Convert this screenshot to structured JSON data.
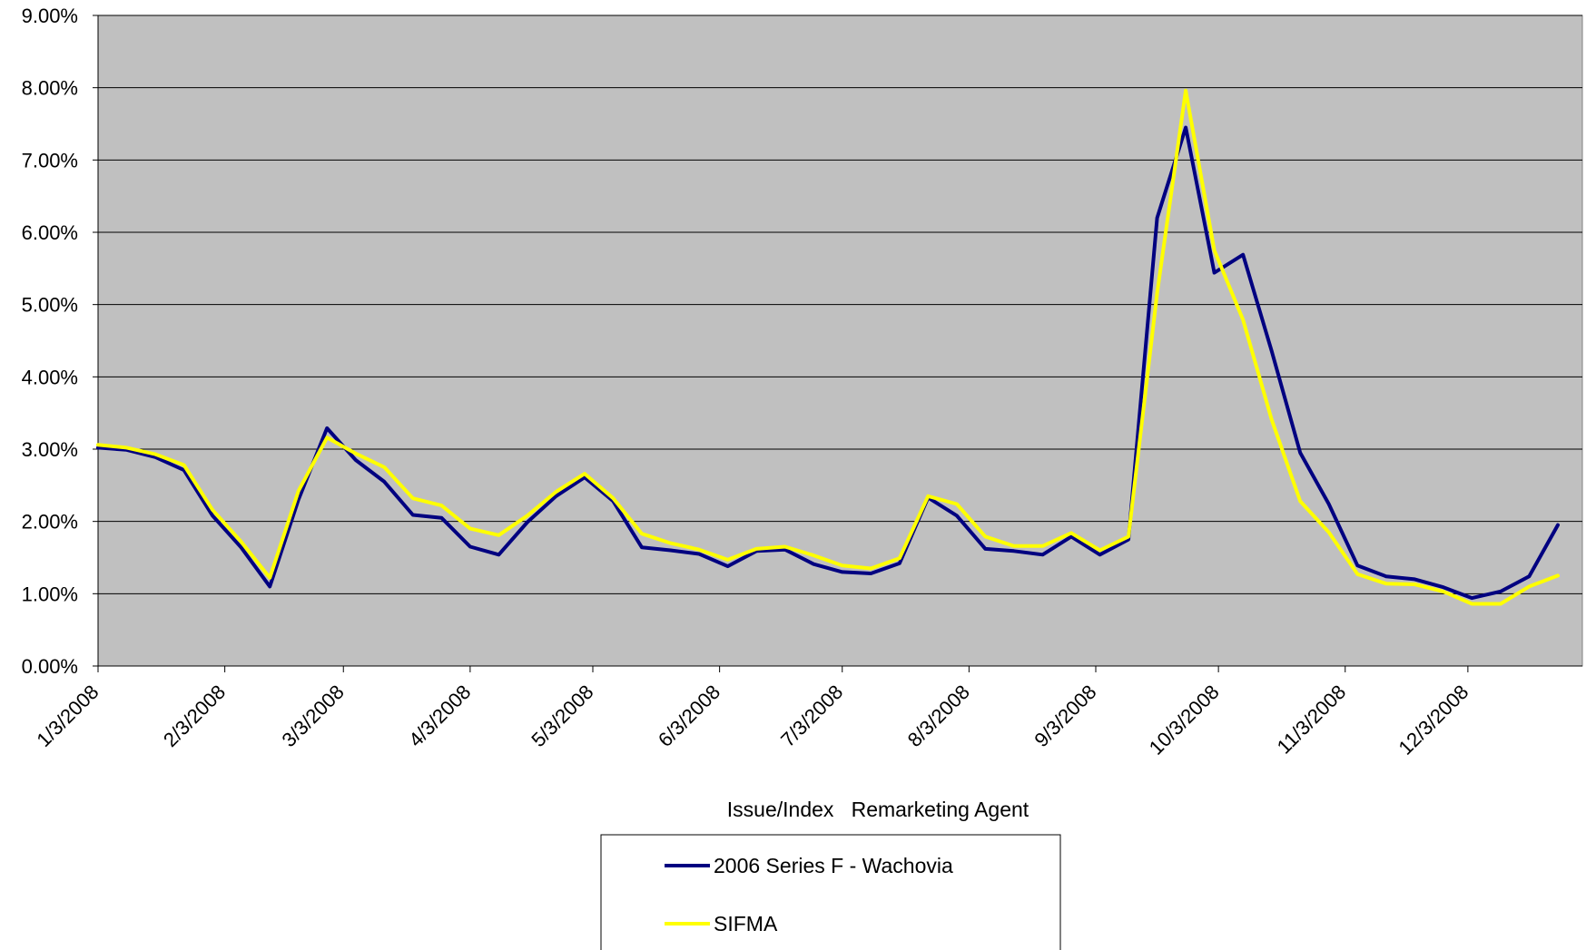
{
  "chart_data": {
    "type": "line",
    "title": "",
    "xlabel": "Issue/Index   Remarketing Agent",
    "ylabel": "",
    "ylim": [
      0,
      9
    ],
    "y_ticks": [
      "0.00%",
      "1.00%",
      "2.00%",
      "3.00%",
      "4.00%",
      "5.00%",
      "6.00%",
      "7.00%",
      "8.00%",
      "9.00%"
    ],
    "x_range": [
      "2008-01-03",
      "2008-12-31"
    ],
    "x_ticks": [
      {
        "date": "2008-01-03",
        "label": "1/3/2008"
      },
      {
        "date": "2008-02-03",
        "label": "2/3/2008"
      },
      {
        "date": "2008-03-03",
        "label": "3/3/2008"
      },
      {
        "date": "2008-04-03",
        "label": "4/3/2008"
      },
      {
        "date": "2008-05-03",
        "label": "5/3/2008"
      },
      {
        "date": "2008-06-03",
        "label": "6/3/2008"
      },
      {
        "date": "2008-07-03",
        "label": "7/3/2008"
      },
      {
        "date": "2008-08-03",
        "label": "8/3/2008"
      },
      {
        "date": "2008-09-03",
        "label": "9/3/2008"
      },
      {
        "date": "2008-10-03",
        "label": "10/3/2008"
      },
      {
        "date": "2008-11-03",
        "label": "11/3/2008"
      },
      {
        "date": "2008-12-03",
        "label": "12/3/2008"
      }
    ],
    "grid": true,
    "legend_position": "bottom-center",
    "background_color": "#c0c0c0",
    "series": [
      {
        "name": "2006 Series F - Wachovia",
        "color": "#000080",
        "points": [
          [
            "2008-01-03",
            3.02
          ],
          [
            "2008-01-10",
            2.99
          ],
          [
            "2008-01-17",
            2.89
          ],
          [
            "2008-01-24",
            2.71
          ],
          [
            "2008-01-31",
            2.08
          ],
          [
            "2008-02-07",
            1.64
          ],
          [
            "2008-02-14",
            1.1
          ],
          [
            "2008-02-21",
            2.3
          ],
          [
            "2008-02-28",
            3.29
          ],
          [
            "2008-03-06",
            2.85
          ],
          [
            "2008-03-13",
            2.55
          ],
          [
            "2008-03-20",
            2.09
          ],
          [
            "2008-03-27",
            2.05
          ],
          [
            "2008-04-03",
            1.65
          ],
          [
            "2008-04-10",
            1.54
          ],
          [
            "2008-04-17",
            1.99
          ],
          [
            "2008-04-24",
            2.35
          ],
          [
            "2008-05-01",
            2.61
          ],
          [
            "2008-05-08",
            2.28
          ],
          [
            "2008-05-15",
            1.64
          ],
          [
            "2008-05-22",
            1.6
          ],
          [
            "2008-05-29",
            1.55
          ],
          [
            "2008-06-05",
            1.38
          ],
          [
            "2008-06-12",
            1.59
          ],
          [
            "2008-06-19",
            1.61
          ],
          [
            "2008-06-26",
            1.41
          ],
          [
            "2008-07-03",
            1.3
          ],
          [
            "2008-07-10",
            1.28
          ],
          [
            "2008-07-17",
            1.42
          ],
          [
            "2008-07-24",
            2.33
          ],
          [
            "2008-07-31",
            2.08
          ],
          [
            "2008-08-07",
            1.62
          ],
          [
            "2008-08-14",
            1.59
          ],
          [
            "2008-08-21",
            1.54
          ],
          [
            "2008-08-28",
            1.79
          ],
          [
            "2008-09-04",
            1.54
          ],
          [
            "2008-09-11",
            1.75
          ],
          [
            "2008-09-18",
            6.2
          ],
          [
            "2008-09-25",
            7.45
          ],
          [
            "2008-10-02",
            5.44
          ],
          [
            "2008-10-09",
            5.69
          ],
          [
            "2008-10-16",
            4.36
          ],
          [
            "2008-10-23",
            2.95
          ],
          [
            "2008-10-30",
            2.24
          ],
          [
            "2008-11-06",
            1.39
          ],
          [
            "2008-11-13",
            1.24
          ],
          [
            "2008-11-20",
            1.2
          ],
          [
            "2008-11-27",
            1.09
          ],
          [
            "2008-12-04",
            0.94
          ],
          [
            "2008-12-11",
            1.03
          ],
          [
            "2008-12-18",
            1.24
          ],
          [
            "2008-12-25",
            1.95
          ]
        ]
      },
      {
        "name": "SIFMA",
        "color": "#ffff00",
        "points": [
          [
            "2008-01-03",
            3.06
          ],
          [
            "2008-01-10",
            3.02
          ],
          [
            "2008-01-17",
            2.93
          ],
          [
            "2008-01-24",
            2.78
          ],
          [
            "2008-01-31",
            2.16
          ],
          [
            "2008-02-07",
            1.72
          ],
          [
            "2008-02-14",
            1.22
          ],
          [
            "2008-02-21",
            2.42
          ],
          [
            "2008-02-28",
            3.16
          ],
          [
            "2008-03-06",
            2.94
          ],
          [
            "2008-03-13",
            2.75
          ],
          [
            "2008-03-20",
            2.32
          ],
          [
            "2008-03-27",
            2.22
          ],
          [
            "2008-04-03",
            1.9
          ],
          [
            "2008-04-10",
            1.81
          ],
          [
            "2008-04-17",
            2.08
          ],
          [
            "2008-04-24",
            2.41
          ],
          [
            "2008-05-01",
            2.66
          ],
          [
            "2008-05-08",
            2.32
          ],
          [
            "2008-05-15",
            1.83
          ],
          [
            "2008-05-22",
            1.7
          ],
          [
            "2008-05-29",
            1.61
          ],
          [
            "2008-06-05",
            1.47
          ],
          [
            "2008-06-12",
            1.62
          ],
          [
            "2008-06-19",
            1.65
          ],
          [
            "2008-06-26",
            1.53
          ],
          [
            "2008-07-03",
            1.39
          ],
          [
            "2008-07-10",
            1.35
          ],
          [
            "2008-07-17",
            1.49
          ],
          [
            "2008-07-24",
            2.35
          ],
          [
            "2008-07-31",
            2.24
          ],
          [
            "2008-08-07",
            1.79
          ],
          [
            "2008-08-14",
            1.66
          ],
          [
            "2008-08-21",
            1.66
          ],
          [
            "2008-08-28",
            1.84
          ],
          [
            "2008-09-04",
            1.6
          ],
          [
            "2008-09-11",
            1.79
          ],
          [
            "2008-09-18",
            5.16
          ],
          [
            "2008-09-25",
            7.96
          ],
          [
            "2008-10-02",
            5.75
          ],
          [
            "2008-10-09",
            4.79
          ],
          [
            "2008-10-16",
            3.41
          ],
          [
            "2008-10-23",
            2.28
          ],
          [
            "2008-10-30",
            1.85
          ],
          [
            "2008-11-06",
            1.27
          ],
          [
            "2008-11-13",
            1.14
          ],
          [
            "2008-11-20",
            1.13
          ],
          [
            "2008-11-27",
            1.03
          ],
          [
            "2008-12-04",
            0.86
          ],
          [
            "2008-12-11",
            0.86
          ],
          [
            "2008-12-18",
            1.1
          ],
          [
            "2008-12-25",
            1.25
          ]
        ]
      }
    ]
  }
}
